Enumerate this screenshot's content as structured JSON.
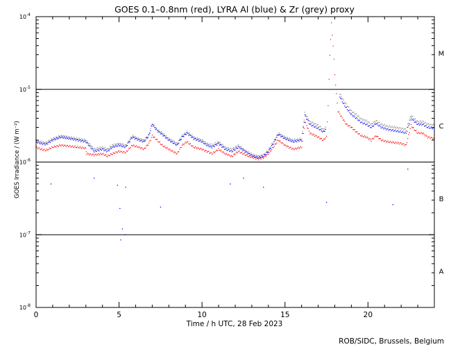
{
  "chart_data": {
    "type": "scatter",
    "title": "GOES 0.1–0.8nm (red), LYRA Al (blue) & Zr (grey) proxy",
    "xlabel": "Time / h UTC, 28 Feb 2023",
    "ylabel": "GOES Irradiance / (W m⁻²)",
    "xlim": [
      0,
      24
    ],
    "ylim": [
      1e-08,
      0.0001
    ],
    "yscale": "log",
    "x_ticks": [
      0,
      5,
      10,
      15,
      20
    ],
    "y_ticks": [
      {
        "value": 0.0001,
        "base": "10",
        "exp": "-4"
      },
      {
        "value": 1e-05,
        "base": "10",
        "exp": "-5"
      },
      {
        "value": 1e-06,
        "base": "10",
        "exp": "-6"
      },
      {
        "value": 1e-07,
        "base": "10",
        "exp": "-7"
      },
      {
        "value": 1e-08,
        "base": "10",
        "exp": "-8"
      }
    ],
    "flare_class_lines": [
      1e-05,
      1e-06,
      1e-07
    ],
    "flare_classes": [
      {
        "label": "M",
        "value": 3.16e-05
      },
      {
        "label": "C",
        "value": 3.16e-06
      },
      {
        "label": "B",
        "value": 3.16e-07
      },
      {
        "label": "A",
        "value": 3.16e-08
      }
    ],
    "grid": false,
    "legend": "none",
    "colors": {
      "goes": "#ff0000",
      "lyra_al": "#0000ff",
      "lyra_zr": "#888888",
      "axis": "#000000"
    },
    "series": [
      {
        "name": "GOES 0.1–0.8nm",
        "color": "#ff0000",
        "x": [
          0,
          0.3,
          0.6,
          1.0,
          1.5,
          2.0,
          2.5,
          3.0,
          3.05,
          3.5,
          4.0,
          4.3,
          4.6,
          5.0,
          5.4,
          5.8,
          6.2,
          6.5,
          6.8,
          7.0,
          7.3,
          7.6,
          8.0,
          8.5,
          8.8,
          9.1,
          9.5,
          10.0,
          10.3,
          10.6,
          11.0,
          11.4,
          11.8,
          12.2,
          12.5,
          12.8,
          13.1,
          13.4,
          13.7,
          14.0,
          14.3,
          14.6,
          15.0,
          15.5,
          16.0,
          16.2,
          16.5,
          17.0,
          17.3,
          17.5,
          17.6,
          17.7,
          17.8,
          17.9,
          18.0,
          18.1,
          18.2,
          18.4,
          18.7,
          19.0,
          19.3,
          19.6,
          19.9,
          20.2,
          20.5,
          20.8,
          21.2,
          21.6,
          22.0,
          22.3,
          22.6,
          22.8,
          23.0,
          23.3,
          23.6,
          24.0
        ],
        "values": [
          1.6e-06,
          1.5e-06,
          1.45e-06,
          1.6e-06,
          1.7e-06,
          1.65e-06,
          1.6e-06,
          1.55e-06,
          1.3e-06,
          1.25e-06,
          1.3e-06,
          1.2e-06,
          1.3e-06,
          1.4e-06,
          1.35e-06,
          1.7e-06,
          1.6e-06,
          1.5e-06,
          1.8e-06,
          2.3e-06,
          2e-06,
          1.7e-06,
          1.5e-06,
          1.3e-06,
          1.7e-06,
          1.9e-06,
          1.6e-06,
          1.5e-06,
          1.4e-06,
          1.3e-06,
          1.5e-06,
          1.3e-06,
          1.2e-06,
          1.4e-06,
          1.3e-06,
          1.2e-06,
          1.15e-06,
          1.1e-06,
          1.15e-06,
          1.3e-06,
          1.6e-06,
          2e-06,
          1.7e-06,
          1.5e-06,
          1.6e-06,
          3.6e-06,
          2.5e-06,
          2.2e-06,
          2e-06,
          2.2e-06,
          6e-06,
          3e-05,
          8e-05,
          4e-05,
          1.6e-05,
          8.5e-06,
          5e-06,
          4.2e-06,
          3.3e-06,
          3e-06,
          2.6e-06,
          2.3e-06,
          2.2e-06,
          2e-06,
          2.3e-06,
          2e-06,
          1.9e-06,
          1.85e-06,
          1.8e-06,
          1.7e-06,
          3.2e-06,
          2.8e-06,
          2.5e-06,
          2.5e-06,
          2.2e-06,
          2.1e-06
        ]
      },
      {
        "name": "LYRA Al",
        "color": "#0000ff",
        "x": [
          0,
          0.3,
          0.6,
          1.0,
          1.5,
          2.0,
          2.5,
          3.0,
          3.5,
          4.0,
          4.3,
          4.6,
          5.0,
          5.4,
          5.8,
          6.2,
          6.5,
          6.8,
          7.0,
          7.3,
          7.6,
          8.0,
          8.5,
          8.8,
          9.1,
          9.5,
          10.0,
          10.3,
          10.6,
          11.0,
          11.4,
          11.8,
          12.2,
          12.5,
          12.8,
          13.1,
          13.4,
          13.7,
          14.0,
          14.3,
          14.6,
          15.0,
          15.5,
          16.0,
          16.2,
          16.5,
          17.0,
          17.3,
          17.5,
          18.3,
          18.5,
          18.7,
          19.0,
          19.3,
          19.6,
          19.9,
          20.2,
          20.5,
          20.8,
          21.2,
          21.6,
          22.0,
          22.3,
          22.6,
          22.8,
          23.0,
          23.3,
          23.6,
          24.0
        ],
        "values": [
          1.9e-06,
          1.8e-06,
          1.75e-06,
          2e-06,
          2.2e-06,
          2.1e-06,
          2e-06,
          1.9e-06,
          1.4e-06,
          1.5e-06,
          1.4e-06,
          1.6e-06,
          1.7e-06,
          1.6e-06,
          2.2e-06,
          2e-06,
          1.9e-06,
          2.3e-06,
          3.3e-06,
          2.7e-06,
          2.4e-06,
          2e-06,
          1.7e-06,
          2.2e-06,
          2.5e-06,
          2.1e-06,
          1.9e-06,
          1.7e-06,
          1.6e-06,
          1.8e-06,
          1.5e-06,
          1.4e-06,
          1.6e-06,
          1.45e-06,
          1.3e-06,
          1.2e-06,
          1.15e-06,
          1.2e-06,
          1.4e-06,
          1.8e-06,
          2.4e-06,
          2.1e-06,
          1.9e-06,
          2e-06,
          4.4e-06,
          3.3e-06,
          2.9e-06,
          2.6e-06,
          2.8e-06,
          8e-06,
          6.5e-06,
          5.5e-06,
          4.5e-06,
          4e-06,
          3.5e-06,
          3.3e-06,
          3e-06,
          3.4e-06,
          3e-06,
          2.8e-06,
          2.7e-06,
          2.6e-06,
          2.5e-06,
          4e-06,
          3.6e-06,
          3.3e-06,
          3.3e-06,
          3e-06,
          2.9e-06
        ]
      },
      {
        "name": "LYRA Zr",
        "color": "#888888",
        "x": [
          0,
          0.3,
          0.6,
          1.0,
          1.5,
          2.0,
          2.5,
          3.0,
          3.5,
          4.0,
          4.3,
          4.6,
          5.0,
          5.4,
          5.8,
          6.2,
          6.5,
          6.8,
          7.0,
          7.3,
          7.6,
          8.0,
          8.5,
          8.8,
          9.1,
          9.5,
          10.0,
          10.3,
          10.6,
          11.0,
          11.4,
          11.8,
          12.2,
          12.5,
          12.8,
          13.1,
          13.4,
          13.7,
          14.0,
          14.3,
          14.6,
          15.0,
          15.5,
          16.0,
          16.2,
          16.5,
          17.0,
          17.3,
          17.5,
          18.3,
          18.5,
          18.7,
          19.0,
          19.3,
          19.6,
          19.9,
          20.2,
          20.5,
          20.8,
          21.2,
          21.6,
          22.0,
          22.3,
          22.6,
          22.8,
          23.0,
          23.3,
          23.6,
          24.0
        ],
        "values": [
          2e-06,
          1.9e-06,
          1.85e-06,
          2.1e-06,
          2.3e-06,
          2.2e-06,
          2.1e-06,
          2e-06,
          1.5e-06,
          1.6e-06,
          1.5e-06,
          1.7e-06,
          1.8e-06,
          1.7e-06,
          2.3e-06,
          2.1e-06,
          2e-06,
          2.4e-06,
          3.4e-06,
          2.8e-06,
          2.5e-06,
          2.1e-06,
          1.8e-06,
          2.3e-06,
          2.6e-06,
          2.2e-06,
          2e-06,
          1.8e-06,
          1.7e-06,
          1.9e-06,
          1.6e-06,
          1.5e-06,
          1.7e-06,
          1.5e-06,
          1.35e-06,
          1.25e-06,
          1.2e-06,
          1.25e-06,
          1.45e-06,
          1.9e-06,
          2.5e-06,
          2.2e-06,
          2e-06,
          2.1e-06,
          4.7e-06,
          3.6e-06,
          3.2e-06,
          2.8e-06,
          3e-06,
          8.8e-06,
          7.2e-06,
          6.2e-06,
          5e-06,
          4.5e-06,
          3.9e-06,
          3.7e-06,
          3.3e-06,
          3.7e-06,
          3.3e-06,
          3.1e-06,
          3e-06,
          2.9e-06,
          2.8e-06,
          4.4e-06,
          3.9e-06,
          3.6e-06,
          3.6e-06,
          3.3e-06,
          3.2e-06
        ]
      }
    ],
    "outliers": {
      "color": "#0000ff",
      "x": [
        3.5,
        0.9,
        4.9,
        5.05,
        5.2,
        5.35,
        7.5,
        11.7,
        12.5,
        13.7,
        17.5,
        21.5,
        22.4,
        5.4,
        5.1
      ],
      "values": [
        6e-07,
        5e-07,
        4.8e-07,
        2.3e-07,
        1.2e-07,
        1e-07,
        2.4e-07,
        5e-07,
        6e-07,
        4.5e-07,
        2.8e-07,
        2.6e-07,
        8e-07,
        4.5e-07,
        8.5e-08
      ]
    }
  },
  "footer": {
    "credit": "ROB/SIDC, Brussels, Belgium"
  }
}
